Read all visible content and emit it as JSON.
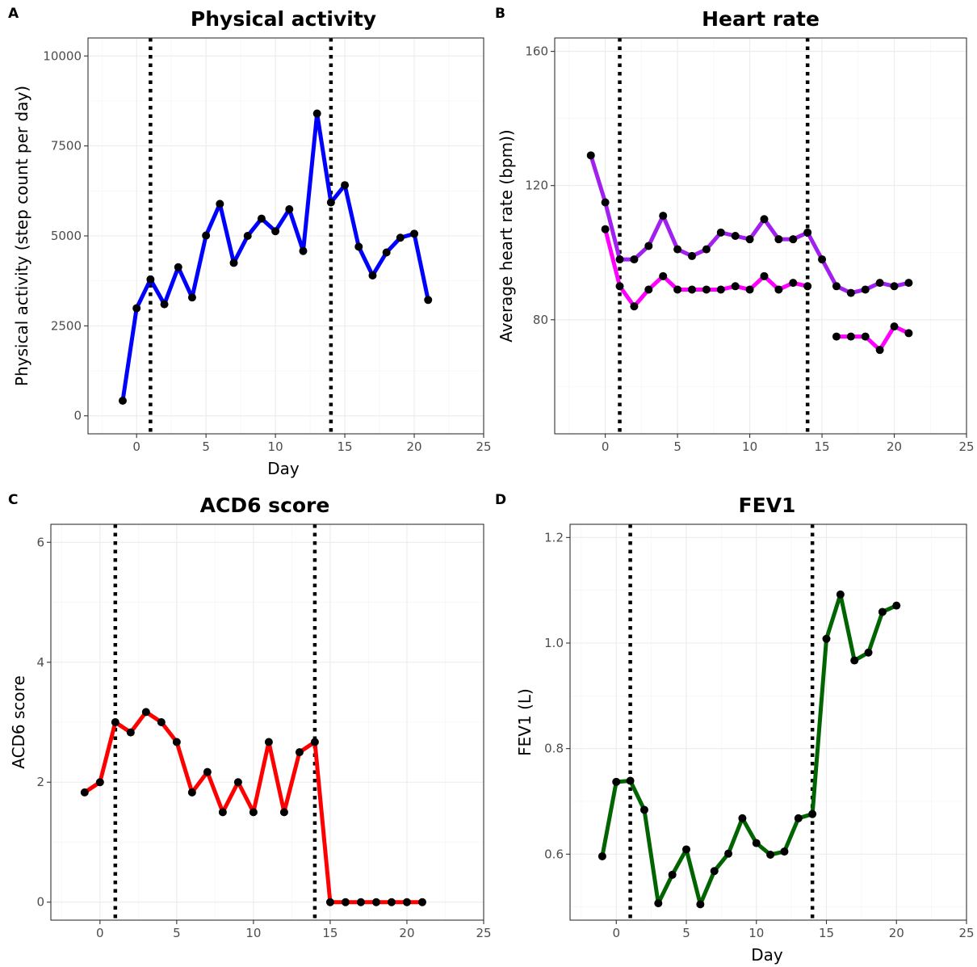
{
  "chart_data": [
    {
      "panel": "A",
      "type": "line",
      "title": "Physical activity",
      "xlabel": "Day",
      "ylabel": "Physical activity (step count per day)",
      "xlim": [
        -3.5,
        25
      ],
      "ylim": [
        -500,
        10500
      ],
      "xticks": [
        0,
        5,
        10,
        15,
        20,
        25
      ],
      "yticks": [
        0,
        2500,
        5000,
        7500,
        10000
      ],
      "xtick_labels": [
        "0",
        "5",
        "10",
        "15",
        "20",
        "25"
      ],
      "ytick_labels": [
        "0",
        "2500",
        "5000",
        "7500",
        "10000"
      ],
      "vlines": [
        1,
        14
      ],
      "grid": true,
      "series": [
        {
          "color": "#0000ff",
          "segments": [
            {
              "x": [
                -1,
                0,
                1,
                2,
                3,
                4,
                5,
                6,
                7,
                8,
                9,
                10,
                11,
                12,
                13,
                14,
                15,
                16,
                17,
                18,
                19,
                20,
                21
              ],
              "y": [
                420,
                2990,
                3790,
                3100,
                4130,
                3290,
                5010,
                5890,
                4250,
                5000,
                5480,
                5130,
                5740,
                4580,
                8400,
                5930,
                6410,
                4700,
                3900,
                4540,
                4950,
                5060,
                3220
              ]
            }
          ]
        }
      ]
    },
    {
      "panel": "B",
      "type": "line",
      "title": "Heart rate",
      "xlabel": "",
      "ylabel": "Average heart rate (bpm))",
      "xlim": [
        -3.5,
        25
      ],
      "ylim": [
        46,
        164
      ],
      "xticks": [
        0,
        5,
        10,
        15,
        20,
        25
      ],
      "yticks": [
        80,
        120,
        160
      ],
      "xtick_labels": [
        "0",
        "5",
        "10",
        "15",
        "20",
        "25"
      ],
      "ytick_labels": [
        "80",
        "120",
        "160"
      ],
      "vlines": [
        1,
        14
      ],
      "grid": true,
      "series": [
        {
          "color": "#a020f0",
          "segments": [
            {
              "x": [
                -1,
                0,
                1,
                2,
                3,
                4,
                5,
                6,
                7,
                8,
                9,
                10,
                11,
                12,
                13,
                14,
                15,
                16,
                17,
                18,
                19,
                20,
                21
              ],
              "y": [
                129,
                115,
                98,
                98,
                102,
                111,
                101,
                99,
                101,
                106,
                105,
                104,
                110,
                104,
                104,
                106,
                98,
                90,
                88,
                89,
                91,
                90,
                91
              ]
            }
          ]
        },
        {
          "color": "#ff00ff",
          "segments": [
            {
              "x": [
                0,
                1,
                2,
                3,
                4,
                5,
                6,
                7,
                8,
                9,
                10,
                11,
                12,
                13,
                14
              ],
              "y": [
                107,
                90,
                84,
                89,
                93,
                89,
                89,
                89,
                89,
                90,
                89,
                93,
                89,
                91,
                90
              ]
            },
            {
              "x": [
                16,
                17,
                18,
                19,
                20,
                21
              ],
              "y": [
                75,
                75,
                75,
                71,
                78,
                76
              ]
            }
          ]
        }
      ]
    },
    {
      "panel": "C",
      "type": "line",
      "title": "ACD6 score",
      "xlabel": "",
      "ylabel": "ACD6 score",
      "xlim": [
        -3.2,
        25
      ],
      "ylim": [
        -0.3,
        6.3
      ],
      "xticks": [
        0,
        5,
        10,
        15,
        20,
        25
      ],
      "yticks": [
        0,
        2,
        4,
        6
      ],
      "xtick_labels": [
        "0",
        "5",
        "10",
        "15",
        "20",
        "25"
      ],
      "ytick_labels": [
        "0",
        "2",
        "4",
        "6"
      ],
      "vlines": [
        1,
        14
      ],
      "grid": true,
      "series": [
        {
          "color": "#ff0000",
          "segments": [
            {
              "x": [
                -1,
                0,
                1,
                2,
                3,
                4,
                5,
                6,
                7,
                8,
                9,
                10,
                11,
                12,
                13,
                14,
                15,
                16,
                17,
                18,
                19,
                20,
                21
              ],
              "y": [
                1.83,
                2.0,
                3.0,
                2.83,
                3.17,
                3.0,
                2.67,
                1.83,
                2.17,
                1.5,
                2.0,
                1.5,
                2.67,
                1.5,
                2.5,
                2.67,
                0,
                0,
                0,
                0,
                0,
                0,
                0
              ]
            }
          ]
        }
      ]
    },
    {
      "panel": "D",
      "type": "line",
      "title": "FEV1",
      "xlabel": "Day",
      "ylabel": "FEV1 (L)",
      "xlim": [
        -3.3,
        25
      ],
      "ylim": [
        0.475,
        1.225
      ],
      "xticks": [
        0,
        5,
        10,
        15,
        20,
        25
      ],
      "yticks": [
        0.6,
        0.8,
        1.0,
        1.2
      ],
      "xtick_labels": [
        "0",
        "5",
        "10",
        "15",
        "20",
        "25"
      ],
      "ytick_labels": [
        "0.6",
        "0.8",
        "1.0",
        "1.2"
      ],
      "vlines": [
        1,
        14
      ],
      "grid": true,
      "series": [
        {
          "color": "#006400",
          "segments": [
            {
              "x": [
                -1,
                0,
                1,
                2,
                3,
                4,
                5,
                6,
                7,
                8,
                9,
                10,
                11,
                12,
                13,
                14,
                15,
                16,
                17,
                18,
                19,
                20
              ],
              "y": [
                0.596,
                0.737,
                0.739,
                0.684,
                0.507,
                0.561,
                0.609,
                0.505,
                0.568,
                0.601,
                0.668,
                0.621,
                0.599,
                0.605,
                0.668,
                0.676,
                1.008,
                1.092,
                0.967,
                0.982,
                1.059,
                1.071
              ]
            }
          ]
        }
      ]
    }
  ]
}
